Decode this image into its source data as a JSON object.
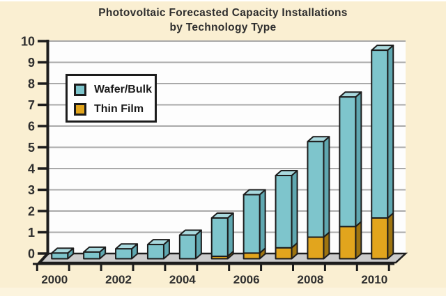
{
  "title": {
    "line1": "Photovoltaic Forecasted Capacity Installations",
    "line2": "by Technology Type"
  },
  "legend": {
    "items": [
      {
        "label": "Wafer/Bulk",
        "color_key": "wafer"
      },
      {
        "label": "Thin Film",
        "color_key": "thin"
      }
    ]
  },
  "colors": {
    "background_cream": "#FAEFD2",
    "wall_white": "#FDFDFD",
    "gridline_gray": "#A9A9A9",
    "floor_gray": "#CBCBCB",
    "outline_black": "#1C1C1C",
    "text_dark": "#2E2E2E",
    "wafer_front": "#7EC5CC",
    "wafer_top": "#A9D9DE",
    "wafer_side": "#5FA7B0",
    "thin_front": "#E2A51D",
    "thin_side": "#9E7410"
  },
  "chart_data": {
    "type": "bar",
    "stacked": true,
    "pseudo_3d": true,
    "title": "Photovoltaic Forecasted Capacity Installations by Technology Type",
    "categories": [
      2000,
      2001,
      2002,
      2003,
      2004,
      2005,
      2006,
      2007,
      2008,
      2009,
      2010
    ],
    "x_tick_labels": [
      "2000",
      "2002",
      "2004",
      "2006",
      "2008",
      "2010"
    ],
    "series": [
      {
        "name": "Wafer/Bulk",
        "values": [
          0.25,
          0.3,
          0.45,
          0.65,
          1.1,
          1.8,
          2.75,
          3.4,
          4.5,
          6.1,
          7.9
        ]
      },
      {
        "name": "Thin Film",
        "values": [
          0,
          0,
          0,
          0,
          0,
          0.1,
          0.25,
          0.5,
          1.0,
          1.5,
          1.9
        ]
      }
    ],
    "totals": [
      0.25,
      0.3,
      0.45,
      0.65,
      1.1,
      1.9,
      3.0,
      3.9,
      5.5,
      7.6,
      9.8
    ],
    "xlabel": "",
    "ylabel": "",
    "ylim": [
      0,
      10
    ],
    "y_ticks": [
      0,
      1,
      2,
      3,
      4,
      5,
      6,
      7,
      8,
      9,
      10
    ],
    "grid": true,
    "legend_position": "upper-left"
  }
}
